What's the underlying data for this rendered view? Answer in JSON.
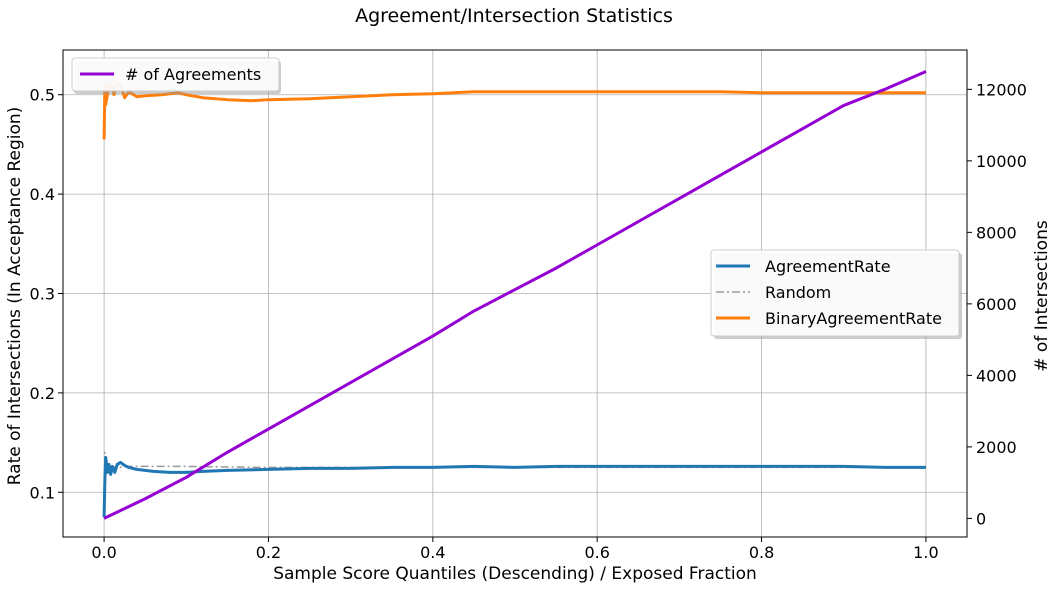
{
  "chart_data": {
    "type": "line",
    "title": "Agreement/Intersection Statistics",
    "xlabel": "Sample Score Quantiles (Descending) / Exposed Fraction",
    "ylabel": "Rate of Intersections (In Acceptance Region)",
    "ylabel_right": "# of Intersections",
    "xlim": [
      -0.05,
      1.05
    ],
    "ylim": [
      0.055,
      0.545
    ],
    "ylim_right": [
      -520,
      13100
    ],
    "x_ticks": [
      0.0,
      0.2,
      0.4,
      0.6,
      0.8,
      1.0
    ],
    "x_tick_labels": [
      "0.0",
      "0.2",
      "0.4",
      "0.6",
      "0.8",
      "1.0"
    ],
    "y_ticks": [
      0.1,
      0.2,
      0.3,
      0.4,
      0.5
    ],
    "y_tick_labels": [
      "0.1",
      "0.2",
      "0.3",
      "0.4",
      "0.5"
    ],
    "y_right_ticks": [
      0,
      2000,
      4000,
      6000,
      8000,
      10000,
      12000
    ],
    "y_right_tick_labels": [
      "0",
      "2000",
      "4000",
      "6000",
      "8000",
      "10000",
      "12000"
    ],
    "grid": true,
    "legends": [
      {
        "placement": "upper-left",
        "entries": [
          "# of Agreements"
        ]
      },
      {
        "placement": "center-right",
        "entries": [
          "AgreementRate",
          "Random",
          "BinaryAgreementRate"
        ]
      }
    ],
    "series": [
      {
        "name": "AgreementRate",
        "axis": "left",
        "color": "#1f77b4",
        "style": "solid",
        "x": [
          0.0,
          0.001,
          0.002,
          0.004,
          0.006,
          0.008,
          0.01,
          0.013,
          0.016,
          0.02,
          0.025,
          0.03,
          0.04,
          0.05,
          0.06,
          0.08,
          0.1,
          0.12,
          0.15,
          0.2,
          0.25,
          0.3,
          0.35,
          0.4,
          0.45,
          0.5,
          0.55,
          0.6,
          0.65,
          0.7,
          0.75,
          0.8,
          0.85,
          0.9,
          0.95,
          1.0
        ],
        "y": [
          0.075,
          0.115,
          0.135,
          0.12,
          0.128,
          0.118,
          0.126,
          0.12,
          0.128,
          0.13,
          0.127,
          0.125,
          0.123,
          0.122,
          0.121,
          0.12,
          0.12,
          0.121,
          0.122,
          0.123,
          0.124,
          0.124,
          0.125,
          0.125,
          0.126,
          0.125,
          0.126,
          0.126,
          0.126,
          0.126,
          0.126,
          0.126,
          0.126,
          0.126,
          0.125,
          0.125
        ]
      },
      {
        "name": "Random",
        "axis": "left",
        "color": "#999999",
        "style": "dashdot",
        "x": [
          0.0,
          0.001,
          0.002,
          0.004,
          0.006,
          0.008,
          0.01,
          0.015,
          0.02,
          0.03,
          0.05,
          0.1,
          0.2,
          0.3,
          0.4,
          0.5,
          0.6,
          0.7,
          0.8,
          0.9,
          1.0
        ],
        "y": [
          0.08,
          0.14,
          0.118,
          0.13,
          0.12,
          0.127,
          0.124,
          0.127,
          0.125,
          0.126,
          0.126,
          0.126,
          0.125,
          0.125,
          0.125,
          0.125,
          0.125,
          0.125,
          0.125,
          0.125,
          0.125
        ]
      },
      {
        "name": "BinaryAgreementRate",
        "axis": "left",
        "color": "#ff7f0e",
        "style": "solid",
        "x": [
          0.0,
          0.001,
          0.002,
          0.004,
          0.006,
          0.008,
          0.01,
          0.012,
          0.015,
          0.018,
          0.02,
          0.025,
          0.03,
          0.04,
          0.05,
          0.07,
          0.09,
          0.1,
          0.12,
          0.15,
          0.18,
          0.2,
          0.25,
          0.3,
          0.35,
          0.4,
          0.45,
          0.5,
          0.55,
          0.6,
          0.65,
          0.7,
          0.75,
          0.8,
          0.85,
          0.9,
          0.95,
          1.0
        ],
        "y": [
          0.455,
          0.51,
          0.49,
          0.5,
          0.512,
          0.505,
          0.51,
          0.5,
          0.508,
          0.512,
          0.51,
          0.497,
          0.503,
          0.498,
          0.499,
          0.5,
          0.502,
          0.5,
          0.497,
          0.495,
          0.494,
          0.495,
          0.496,
          0.498,
          0.5,
          0.501,
          0.503,
          0.503,
          0.503,
          0.503,
          0.503,
          0.503,
          0.503,
          0.502,
          0.502,
          0.502,
          0.502,
          0.502
        ]
      },
      {
        "name": "# of Agreements",
        "axis": "right",
        "color": "#9400d3",
        "style": "solid",
        "x": [
          0.0,
          0.05,
          0.1,
          0.15,
          0.2,
          0.25,
          0.3,
          0.35,
          0.4,
          0.45,
          0.5,
          0.55,
          0.6,
          0.65,
          0.7,
          0.75,
          0.8,
          0.85,
          0.9,
          0.95,
          1.0
        ],
        "y": [
          0,
          550,
          1150,
          1850,
          2500,
          3150,
          3800,
          4450,
          5100,
          5800,
          6400,
          7000,
          7650,
          8300,
          8950,
          9600,
          10250,
          10900,
          11550,
          12000,
          12500
        ]
      }
    ]
  }
}
